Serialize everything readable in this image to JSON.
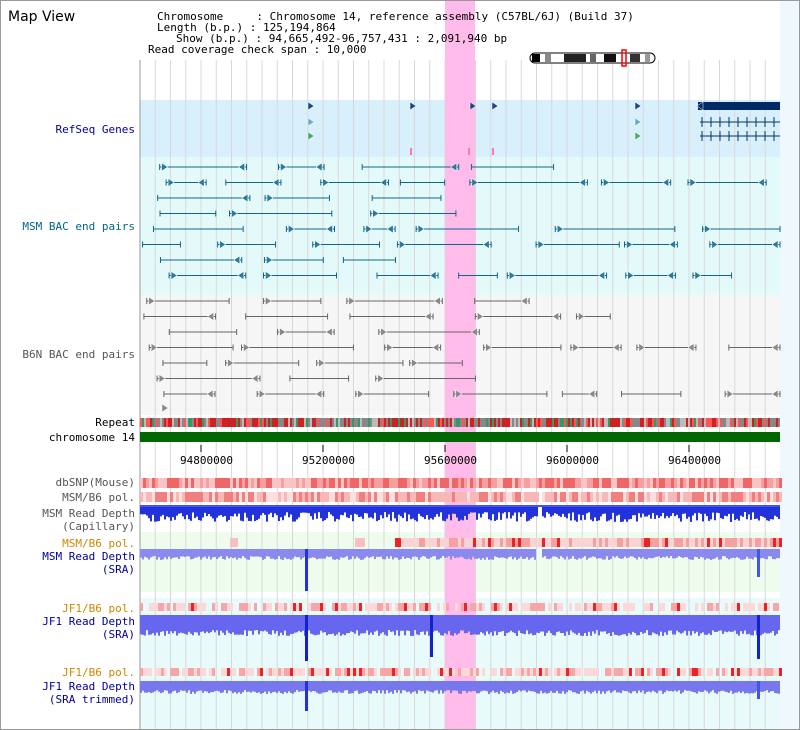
{
  "page_title": "Map View",
  "info": {
    "chromosome": "Chromosome     : Chromosome 14, reference assembly (C57BL/6J) (Build 37)",
    "length": "Length (b.p.) : 125,194,864",
    "show": "Show (b.p.) : 94,665,492-96,757,431 : 2,091,940 bp",
    "coverage": "Read coverage check span : 10,000"
  },
  "tracks": {
    "refseq": "RefSeq Genes",
    "msm_bac": "MSM BAC end pairs",
    "b6n_bac": "B6N BAC end pairs",
    "repeat": "Repeat",
    "chromosome": "chromosome 14",
    "dbsnp": "dbSNP(Mouse)",
    "msm_b6_pol": "MSM/B6 pol.",
    "msm_depth_cap_1": "MSM Read Depth",
    "msm_depth_cap_2": "(Capillary)",
    "msm_b6_pol2": "MSM/B6 pol.",
    "msm_depth_sra_1": "MSM Read Depth",
    "msm_depth_sra_2": "(SRA)",
    "jf1_b6_pol": "JF1/B6 pol.",
    "jf1_depth_sra_1": "JF1 Read Depth",
    "jf1_depth_sra_2": "(SRA)",
    "jf1_b6_pol2": "JF1/B6 pol.",
    "jf1_depth_trim_1": "JF1 Read Depth",
    "jf1_depth_trim_2": "(SRA trimmed)"
  },
  "axis_ticks": [
    "94800000",
    "95200000",
    "95600000",
    "96000000",
    "96400000"
  ],
  "colors": {
    "navy_label": "#000099",
    "teal_label": "#006688",
    "gray_label": "#555555",
    "orange_label": "#cc8800",
    "highlight": "#ffccf0",
    "refseq_bg": "#d8f0fc",
    "bac_bg": "#e4fafa",
    "chrom_green": "#006600"
  }
}
